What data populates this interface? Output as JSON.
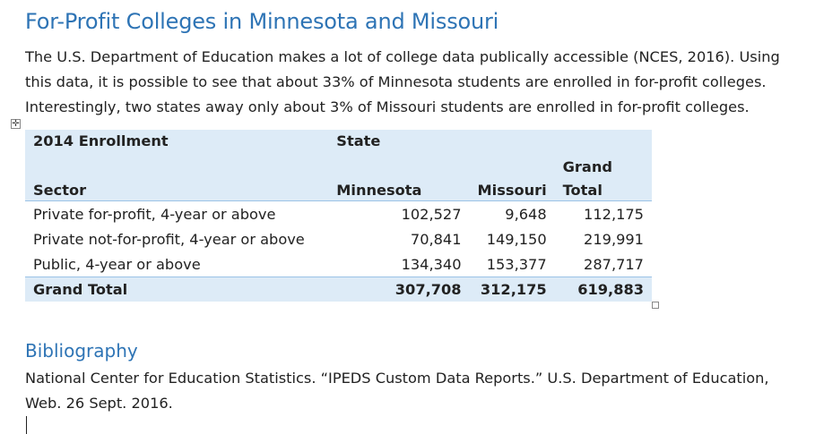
{
  "document": {
    "title": "For-Profit Colleges in Minnesota and Missouri",
    "intro_lines": [
      "The U.S. Department of Education makes a lot of college data publically accessible (NCES, 2016). Using",
      "this data, it is possible to see that about 33% of Minnesota students are enrolled in for-profit colleges.",
      "Interestingly, two states away only about 3% of Missouri students are enrolled in for-profit colleges."
    ],
    "table_handle_glyph": "✛",
    "bibliography_heading": "Bibliography",
    "bibliography_lines": [
      "National Center for Education Statistics. “IPEDS Custom Data Reports.” U.S. Department of Education,",
      "Web. 26 Sept. 2016."
    ]
  },
  "pivot": {
    "corner_label": "2014 Enrollment",
    "column_group_label": "State",
    "row_header": "Sector",
    "columns": [
      "Minnesota",
      "Missouri"
    ],
    "grand_total_col_line1": "Grand",
    "grand_total_col_line2": "Total",
    "rows": [
      {
        "sector": "Private for-profit, 4-year or above",
        "minnesota": "102,527",
        "missouri": "9,648",
        "total": "112,175"
      },
      {
        "sector": "Private not-for-profit, 4-year or above",
        "minnesota": "70,841",
        "missouri": "149,150",
        "total": "219,991"
      },
      {
        "sector": "Public, 4-year or above",
        "minnesota": "134,340",
        "missouri": "153,377",
        "total": "287,717"
      }
    ],
    "grand_total": {
      "label": "Grand Total",
      "minnesota": "307,708",
      "missouri": "312,175",
      "total": "619,883"
    }
  }
}
